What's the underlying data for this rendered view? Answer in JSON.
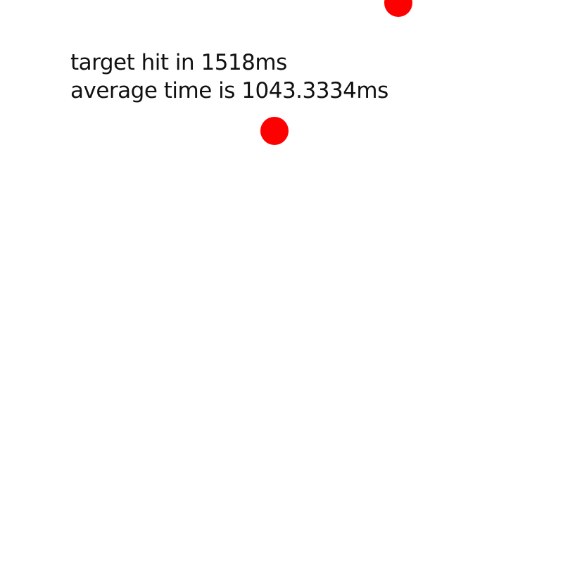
{
  "status": {
    "last_hit": "target hit in 1518ms",
    "average": "average time is 1043.3334ms"
  },
  "targets": {
    "color": "#ff0000"
  }
}
